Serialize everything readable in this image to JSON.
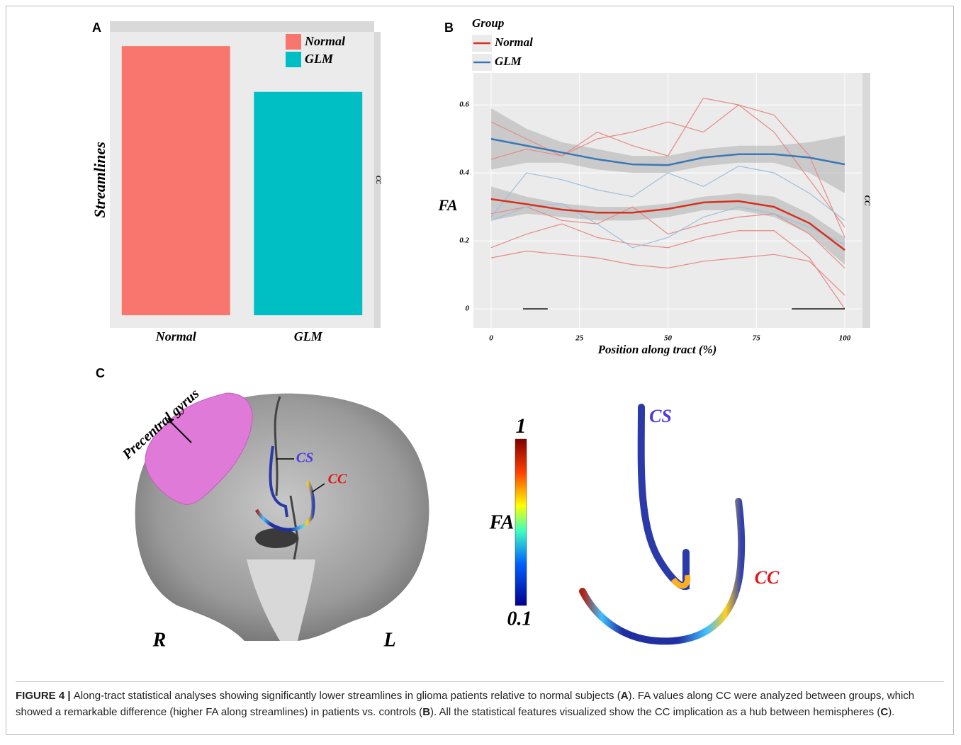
{
  "panel_labels": [
    "A",
    "B",
    "C"
  ],
  "chart_data": [
    {
      "type": "bar",
      "categories": [
        "Normal",
        "GLM"
      ],
      "values": [
        100,
        83
      ],
      "colors": [
        "#f8766d",
        "#00bfc4"
      ],
      "ylabel": "Streamlines",
      "ylim": [
        -4.7,
        105.3
      ],
      "facet": "CC",
      "legend": "top-right"
    },
    {
      "type": "line",
      "legend_title": "Group",
      "xlabel": "Position along tract (%)",
      "ylabel": "FA",
      "facet": "CC",
      "grid": true,
      "x": [
        0,
        10,
        20,
        30,
        40,
        50,
        60,
        70,
        80,
        90,
        100
      ],
      "xlim": [
        -5,
        105
      ],
      "ylim": [
        -0.056,
        0.694
      ],
      "xticks": [
        0,
        25,
        50,
        75,
        100
      ],
      "yticks": [
        0,
        0.2,
        0.4,
        0.6
      ],
      "series": [
        {
          "name": "Normal",
          "color": "#d7301f",
          "values": [
            0.323,
            0.308,
            0.292,
            0.283,
            0.283,
            0.294,
            0.313,
            0.317,
            0.3,
            0.252,
            0.173
          ],
          "lower": [
            0.26,
            0.28,
            0.27,
            0.26,
            0.26,
            0.27,
            0.29,
            0.29,
            0.27,
            0.22,
            0.13
          ],
          "upper": [
            0.36,
            0.33,
            0.31,
            0.3,
            0.3,
            0.31,
            0.33,
            0.34,
            0.33,
            0.28,
            0.21
          ]
        },
        {
          "name": "GLM",
          "color": "#3a78b5",
          "values": [
            0.5,
            0.48,
            0.46,
            0.44,
            0.425,
            0.423,
            0.445,
            0.455,
            0.455,
            0.445,
            0.425
          ],
          "lower": [
            0.41,
            0.43,
            0.43,
            0.41,
            0.4,
            0.4,
            0.42,
            0.43,
            0.43,
            0.4,
            0.34
          ],
          "upper": [
            0.59,
            0.53,
            0.49,
            0.47,
            0.45,
            0.45,
            0.47,
            0.48,
            0.48,
            0.49,
            0.51
          ]
        }
      ],
      "subjects": [
        {
          "color": "#e58a86",
          "values": [
            0.44,
            0.47,
            0.45,
            0.52,
            0.48,
            0.45,
            0.62,
            0.6,
            0.52,
            0.38,
            0.24
          ]
        },
        {
          "color": "#e58a86",
          "values": [
            0.55,
            0.5,
            0.45,
            0.5,
            0.52,
            0.55,
            0.52,
            0.6,
            0.57,
            0.45,
            0.21
          ]
        },
        {
          "color": "#e58a86",
          "values": [
            0.28,
            0.3,
            0.26,
            0.25,
            0.3,
            0.22,
            0.25,
            0.27,
            0.28,
            0.22,
            0.12
          ]
        },
        {
          "color": "#e58a86",
          "values": [
            0.15,
            0.17,
            0.16,
            0.15,
            0.13,
            0.12,
            0.14,
            0.15,
            0.16,
            0.14,
            0.04
          ]
        },
        {
          "color": "#e58a86",
          "values": [
            0.18,
            0.22,
            0.25,
            0.21,
            0.19,
            0.18,
            0.21,
            0.23,
            0.23,
            0.15,
            0
          ]
        },
        {
          "color": "#9fbfdd",
          "values": [
            0.27,
            0.4,
            0.38,
            0.35,
            0.33,
            0.4,
            0.36,
            0.42,
            0.4,
            0.34,
            0.26
          ]
        },
        {
          "color": "#9fbfdd",
          "values": [
            0.26,
            0.3,
            0.31,
            0.25,
            0.18,
            0.21,
            0.27,
            0.3,
            0.28,
            0.24,
            0.19
          ]
        }
      ],
      "segments": [
        {
          "x": [
            9,
            16
          ],
          "y": 0
        },
        {
          "x": [
            85,
            100
          ],
          "y": 0
        }
      ]
    }
  ],
  "panel_c": {
    "precentral": "Precentral gyrus",
    "cs": "CS",
    "cc": "CC",
    "right": "R",
    "left": "L",
    "colorbar": {
      "max": 1,
      "min": 0.1,
      "label": "FA"
    },
    "cs3d": "CS",
    "cc3d": "CC"
  },
  "caption": {
    "runs": [
      {
        "text": "FIGURE 4 | ",
        "bold": true
      },
      {
        "text": "Along-tract statistical analyses showing significantly lower streamlines in glioma patients relative to normal subjects (",
        "bold": false
      },
      {
        "text": "A",
        "bold": true
      },
      {
        "text": "). FA values along CC were analyzed between groups, which showed a remarkable difference (higher FA along streamlines) in patients vs. controls (",
        "bold": false
      },
      {
        "text": "B",
        "bold": true
      },
      {
        "text": "). All the statistical features visualized show the CC implication as a hub between hemispheres (",
        "bold": false
      },
      {
        "text": "C",
        "bold": true
      },
      {
        "text": ").",
        "bold": false
      }
    ]
  }
}
